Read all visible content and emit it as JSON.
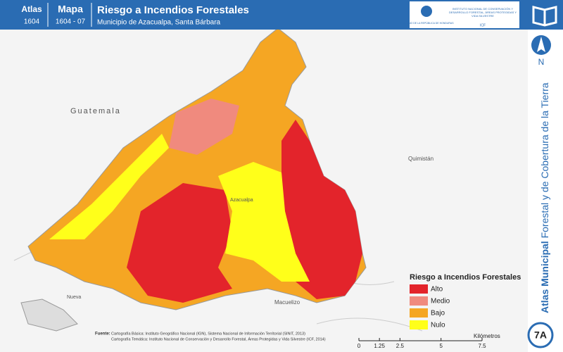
{
  "header": {
    "atlas_label": "Atlas",
    "atlas_number": "1604",
    "map_label": "Mapa",
    "map_number": "1604 - 07",
    "title": "Riesgo a Incendios Forestales",
    "subtitle": "Municipio de Azacualpa, Santa Bárbara",
    "logo_left": "GOBIERNO DE LA REPÚBLICA DE HONDURAS",
    "logo_right": "INSTITUTO NACIONAL DE CONSERVACIÓN Y DESARROLLO FORESTAL, ÁREAS PROTEGIDAS Y VIDA SILVESTRE",
    "logo_acronym": "ICF"
  },
  "side": {
    "north": "N",
    "atlas_bold": "Atlas Municipal",
    "atlas_rest": "Forestal y de Cobertura de la Tierra",
    "badge": "7A"
  },
  "places": {
    "guatemala": "Guatemala",
    "quimistan": "Quimistán",
    "azacualpa": "Azacualpa",
    "macuelizo": "Macuelizo",
    "nueva": "Nueva"
  },
  "legend": {
    "title": "Riesgo a Incendios Forestales",
    "items": [
      {
        "label": "Alto",
        "color": "#e3242b"
      },
      {
        "label": "Medio",
        "color": "#f08a7e"
      },
      {
        "label": "Bajo",
        "color": "#f5a623"
      },
      {
        "label": "Nulo",
        "color": "#ffff1a"
      }
    ]
  },
  "source": {
    "label": "Fuente:",
    "line1": "Cartografía Básica: Instituto Geográfico Nacional (IGN), Sistema Nacional de Información Territorial (SINIT, 2013)",
    "line2": "Cartografía Temática: Instituto Nacional de Conservación y Desarrollo Forestal, Áreas Protegidas y Vida Silvestre (ICF, 2014)"
  },
  "scale_bar": {
    "ticks": [
      0,
      1.25,
      2.5,
      5,
      7.5
    ],
    "unit": "Kilómetros"
  }
}
